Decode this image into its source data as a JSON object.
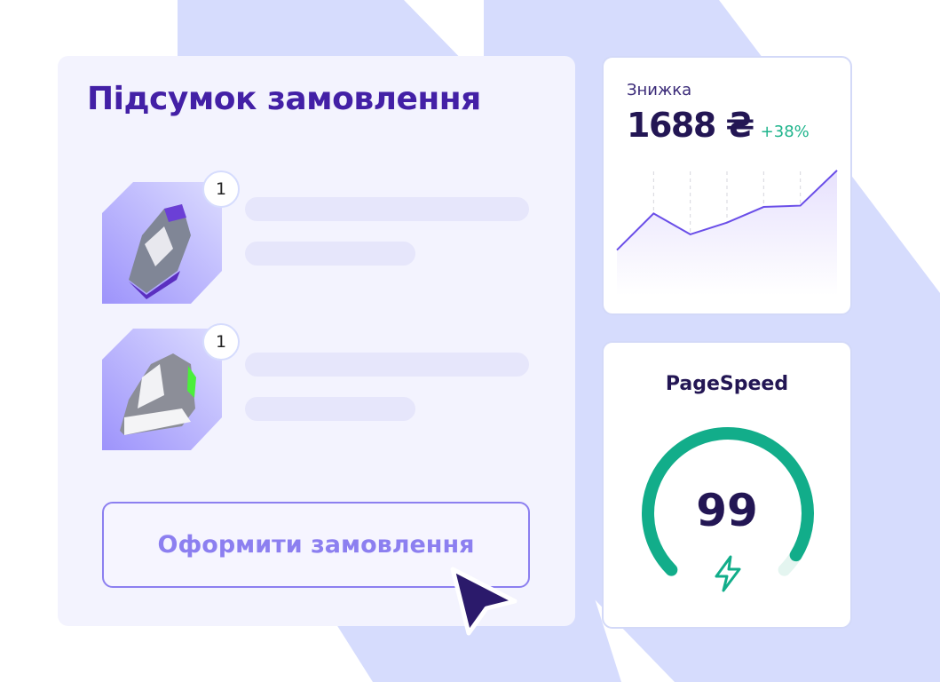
{
  "order": {
    "title": "Підсумок замовлення",
    "items": [
      {
        "quantity": "1"
      },
      {
        "quantity": "1"
      }
    ],
    "checkout_label": "Оформити замовлення"
  },
  "discount": {
    "label": "Знижка",
    "amount": "1688 ₴",
    "change": "+38%",
    "chart_data": {
      "type": "area",
      "values": [
        35,
        63,
        47,
        56,
        68,
        69,
        96
      ],
      "grid": "vertical dashed",
      "color": "#6a4ee8"
    }
  },
  "pagespeed": {
    "title": "PageSpeed",
    "score": "99",
    "score_value": 99,
    "color": "#12ad8a",
    "icon": "lightning-icon"
  },
  "colors": {
    "accent": "#4320a6",
    "button": "#8c7ff0",
    "background_stripes": "#d6dcfd"
  }
}
